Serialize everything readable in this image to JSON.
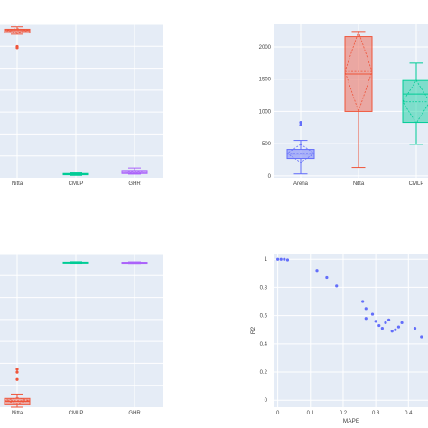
{
  "colors": {
    "plot_bg": "#e5ecf6",
    "grid": "#ffffff",
    "red": "#ef553b",
    "blue": "#636efa",
    "green": "#00cc96",
    "purple": "#ab63fa",
    "text": "#444444"
  },
  "chart_data": [
    {
      "type": "box",
      "categories": [
        "Nitta",
        "CMLP",
        "GHR"
      ],
      "ylim": [
        0,
        1.25
      ],
      "grid": true,
      "series": [
        {
          "category": "Nitta",
          "color": "red",
          "q1": 1.18,
          "median": 1.2,
          "q3": 1.21,
          "lower": 1.17,
          "upper": 1.23,
          "mean": 1.2,
          "sd": 0.015,
          "outliers": [
            1.07,
            1.06
          ]
        },
        {
          "category": "CMLP",
          "color": "green",
          "q1": 0.025,
          "median": 0.03,
          "q3": 0.035,
          "lower": 0.02,
          "upper": 0.04,
          "mean": 0.03,
          "sd": 0.004,
          "outliers": []
        },
        {
          "category": "GHR",
          "color": "purple",
          "q1": 0.035,
          "median": 0.045,
          "q3": 0.06,
          "lower": 0.03,
          "upper": 0.08,
          "mean": 0.047,
          "sd": 0.01,
          "outliers": []
        }
      ]
    },
    {
      "type": "box",
      "categories": [
        "Arena",
        "Nitta",
        "CMLP"
      ],
      "ylim": [
        -30,
        2350
      ],
      "yticks": [
        0,
        500,
        1000,
        1500,
        2000
      ],
      "grid": true,
      "series": [
        {
          "category": "Arena",
          "color": "blue",
          "q1": 270,
          "median": 340,
          "q3": 410,
          "lower": 30,
          "upper": 550,
          "mean": 350,
          "sd": 140,
          "outliers": [
            790,
            830
          ]
        },
        {
          "category": "Nitta",
          "color": "red",
          "q1": 1000,
          "median": 1580,
          "q3": 2160,
          "lower": 130,
          "upper": 2240,
          "mean": 1620,
          "sd": 620,
          "outliers": []
        },
        {
          "category": "CMLP",
          "color": "green",
          "q1": 830,
          "median": 1270,
          "q3": 1480,
          "lower": 490,
          "upper": 1750,
          "mean": 1150,
          "sd": 330,
          "outliers": []
        }
      ]
    },
    {
      "type": "box",
      "categories": [
        "Nitta",
        "CMLP",
        "GHR"
      ],
      "ylim": [
        0,
        1.05
      ],
      "grid": true,
      "series": [
        {
          "category": "Nitta",
          "color": "red",
          "q1": 0.02,
          "median": 0.04,
          "q3": 0.06,
          "lower": 0.0,
          "upper": 0.09,
          "mean": 0.045,
          "sd": 0.02,
          "outliers": [
            0.26,
            0.24,
            0.19
          ]
        },
        {
          "category": "CMLP",
          "color": "green",
          "q1": 0.988,
          "median": 0.99,
          "q3": 0.992,
          "lower": 0.985,
          "upper": 0.995,
          "mean": 0.99,
          "sd": 0.002,
          "outliers": []
        },
        {
          "category": "GHR",
          "color": "purple",
          "q1": 0.987,
          "median": 0.989,
          "q3": 0.991,
          "lower": 0.984,
          "upper": 0.994,
          "mean": 0.989,
          "sd": 0.002,
          "outliers": []
        }
      ]
    },
    {
      "type": "scatter",
      "xlabel": "MAPE",
      "ylabel": "R2",
      "xlim": [
        -0.01,
        0.46
      ],
      "ylim": [
        -0.05,
        1.04
      ],
      "xticks": [
        0,
        0.1,
        0.2,
        0.3,
        0.4
      ],
      "xtick_labels": [
        "0",
        "0.1",
        "0.2",
        "0.3",
        "0.4"
      ],
      "yticks": [
        0,
        0.2,
        0.4,
        0.6,
        0.8,
        1
      ],
      "ytick_labels": [
        "0",
        "0.2",
        "0.4",
        "0.6",
        "0.8",
        "1"
      ],
      "grid": true,
      "color": "blue",
      "points": [
        {
          "x": 0.0,
          "y": 1.0
        },
        {
          "x": 0.01,
          "y": 1.0
        },
        {
          "x": 0.02,
          "y": 1.0
        },
        {
          "x": 0.03,
          "y": 0.995
        },
        {
          "x": 0.12,
          "y": 0.92
        },
        {
          "x": 0.15,
          "y": 0.87
        },
        {
          "x": 0.18,
          "y": 0.81
        },
        {
          "x": 0.26,
          "y": 0.7
        },
        {
          "x": 0.27,
          "y": 0.65
        },
        {
          "x": 0.27,
          "y": 0.58
        },
        {
          "x": 0.29,
          "y": 0.61
        },
        {
          "x": 0.3,
          "y": 0.56
        },
        {
          "x": 0.31,
          "y": 0.53
        },
        {
          "x": 0.32,
          "y": 0.51
        },
        {
          "x": 0.33,
          "y": 0.55
        },
        {
          "x": 0.34,
          "y": 0.57
        },
        {
          "x": 0.35,
          "y": 0.49
        },
        {
          "x": 0.36,
          "y": 0.5
        },
        {
          "x": 0.37,
          "y": 0.52
        },
        {
          "x": 0.38,
          "y": 0.55
        },
        {
          "x": 0.42,
          "y": 0.51
        },
        {
          "x": 0.44,
          "y": 0.45
        }
      ]
    }
  ]
}
